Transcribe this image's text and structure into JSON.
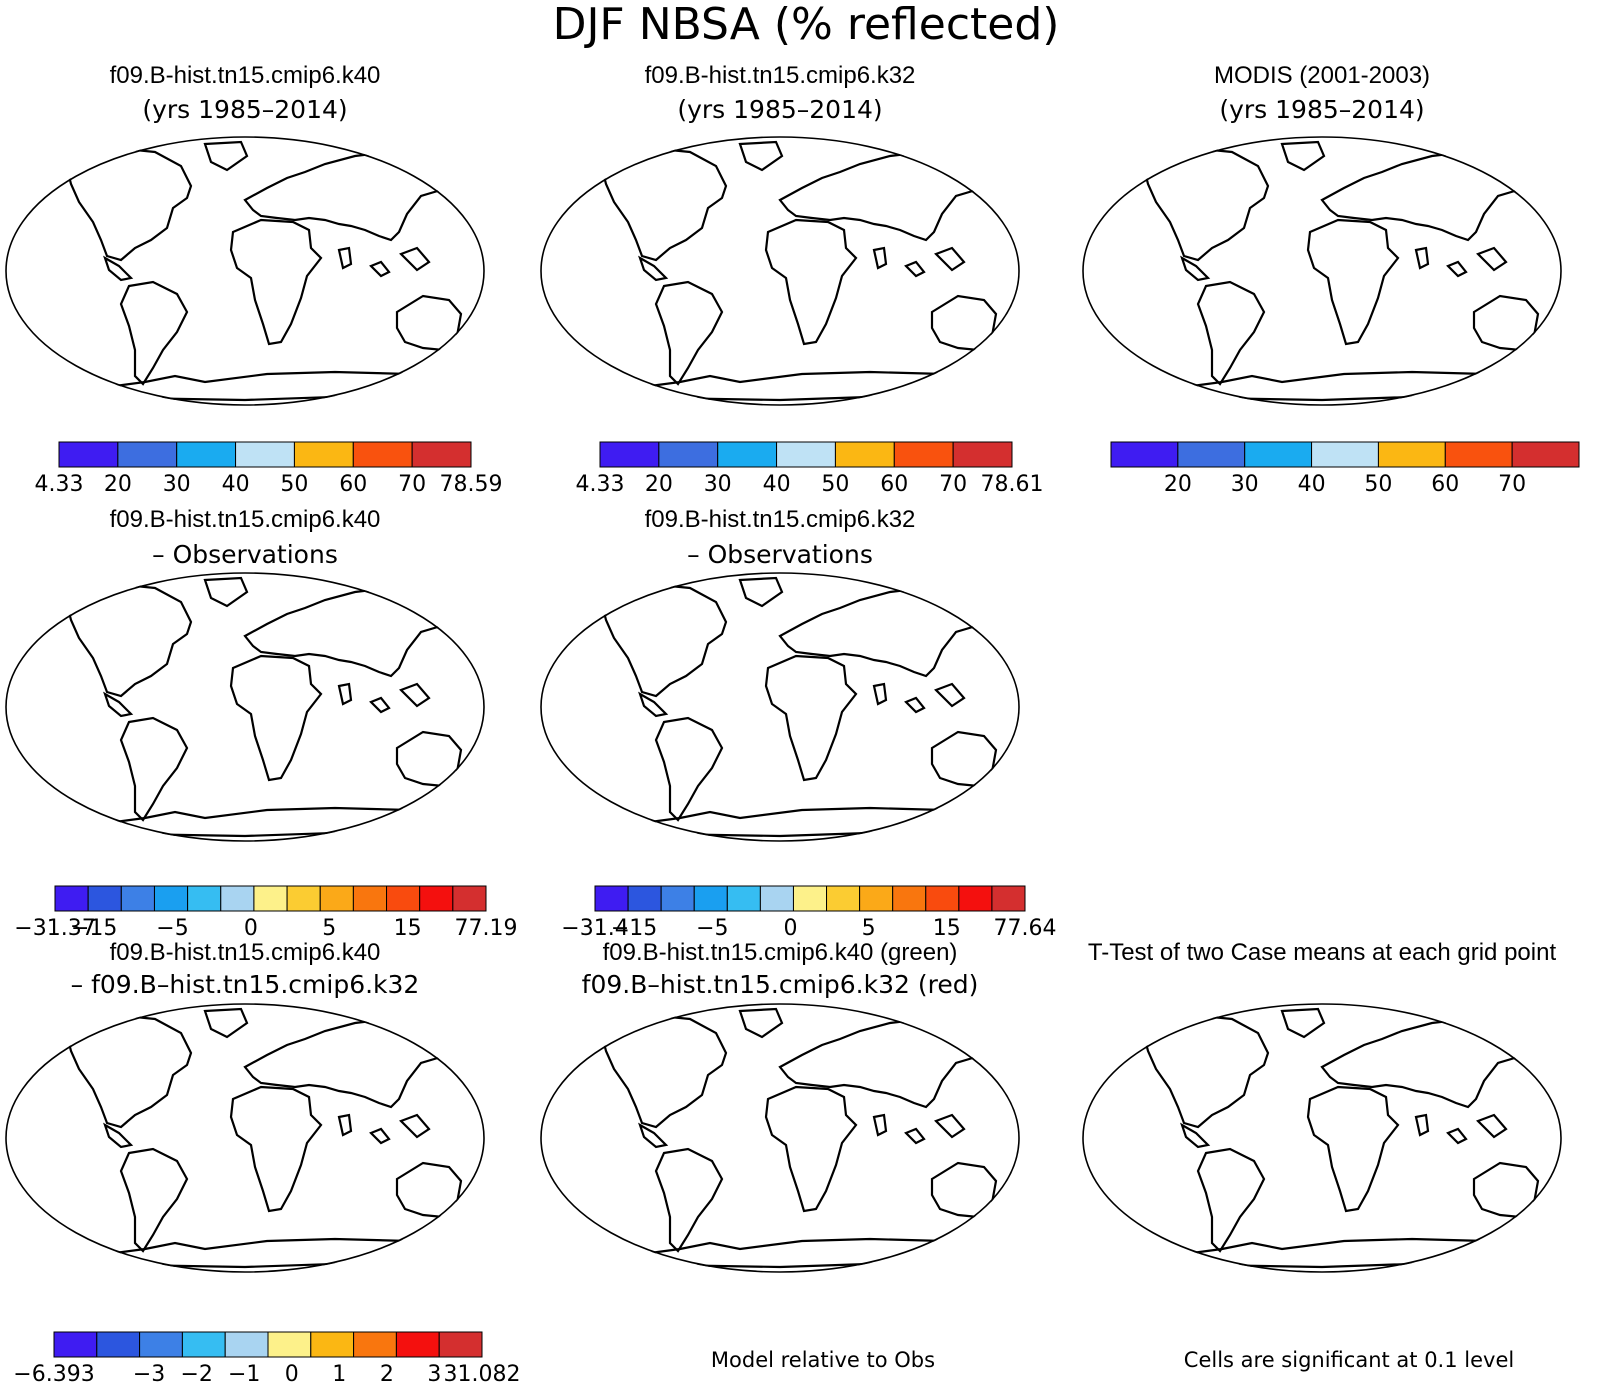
{
  "title": "DJF NBSA (% reflected)",
  "palettes": {
    "abs": [
      "#3f1cf2",
      "#3d6ee0",
      "#1aabf0",
      "#bfe2f5",
      "#fbb713",
      "#f9520e",
      "#d42f2f"
    ],
    "diff": [
      "#3f1cf2",
      "#2c56df",
      "#3d80e6",
      "#1a9ff0",
      "#36bdf2",
      "#a9d4f1",
      "#fdf18a",
      "#fbcc32",
      "#fba918",
      "#f9760e",
      "#f94b0e",
      "#f4100e",
      "#d42f2f"
    ],
    "diff10": [
      "#3f1cf2",
      "#2c56df",
      "#3d80e6",
      "#36bdf2",
      "#a9d4f1",
      "#fdf18a",
      "#fbb713",
      "#f9760e",
      "#f4100e",
      "#d42f2f"
    ]
  },
  "panels": [
    {
      "title": "f09.B-hist.tn15.cmip6.k40",
      "subtitle": "(yrs 1985–2014)",
      "map_style": "abs",
      "colorbar": {
        "palette": "abs",
        "ticks": [
          "4.33",
          "20",
          "30",
          "40",
          "50",
          "60",
          "70",
          "78.59"
        ]
      }
    },
    {
      "title": "f09.B-hist.tn15.cmip6.k32",
      "subtitle": "(yrs 1985–2014)",
      "map_style": "abs",
      "colorbar": {
        "palette": "abs",
        "ticks": [
          "4.33",
          "20",
          "30",
          "40",
          "50",
          "60",
          "70",
          "78.61"
        ]
      }
    },
    {
      "title": "MODIS (2001-2003)",
      "subtitle": "(yrs 1985–2014)",
      "map_style": "obs",
      "colorbar": {
        "palette": "abs",
        "ticks": [
          "",
          "20",
          "30",
          "40",
          "50",
          "60",
          "70",
          ""
        ]
      }
    },
    {
      "title": "f09.B-hist.tn15.cmip6.k40",
      "subtitle": "– Observations",
      "map_style": "diff",
      "colorbar": {
        "palette": "diff",
        "ticks": [
          "−31.37",
          "−15",
          "",
          "−5",
          "",
          "0",
          "",
          "5",
          "",
          "15",
          "",
          "77.19"
        ]
      }
    },
    {
      "title": "f09.B-hist.tn15.cmip6.k32",
      "subtitle": "– Observations",
      "map_style": "diff",
      "colorbar": {
        "palette": "diff",
        "ticks": [
          "−31.4",
          "−15",
          "",
          "−5",
          "",
          "0",
          "",
          "5",
          "",
          "15",
          "",
          "77.64"
        ]
      }
    },
    {
      "title": "f09.B-hist.tn15.cmip6.k40",
      "subtitle": "– f09.B–hist.tn15.cmip6.k32",
      "map_style": "casediff",
      "colorbar": {
        "palette": "diff10",
        "ticks": [
          "−6.393",
          "",
          "−3",
          "−2",
          "−1",
          "0",
          "1",
          "2",
          "3",
          "31.082"
        ]
      }
    },
    {
      "title": "f09.B-hist.tn15.cmip6.k40 (green)",
      "subtitle": "f09.B–hist.tn15.cmip6.k32 (red)",
      "map_style": "dots",
      "note": "Model relative to Obs"
    },
    {
      "title": "T-Test of two Case means at each grid point",
      "subtitle": "",
      "map_style": "ttest",
      "note": "Cells are significant at 0.1 level"
    }
  ]
}
